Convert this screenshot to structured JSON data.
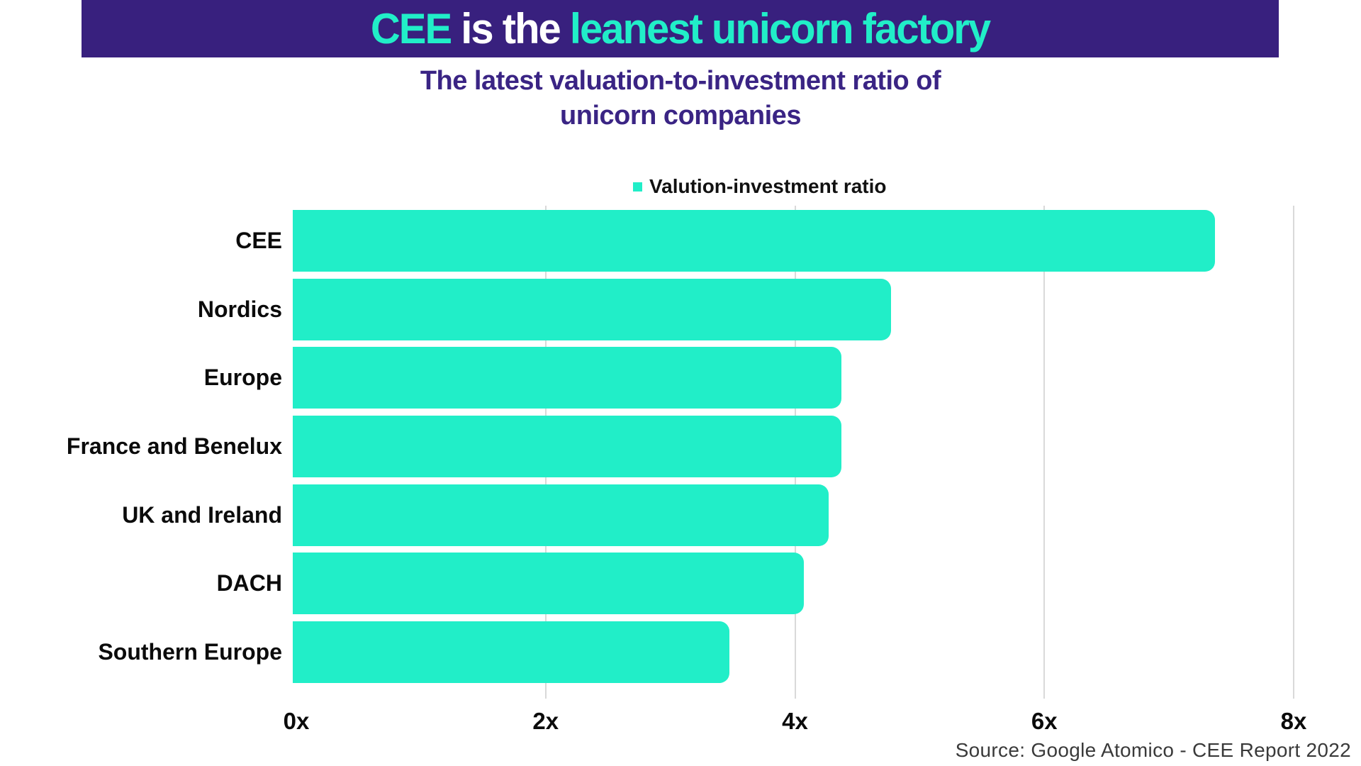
{
  "header": {
    "title_part1": "CEE",
    "title_part2": " is the ",
    "title_part3": "leanest unicorn factory",
    "banner_color": "#38207E",
    "accent_color": "#21EEC8",
    "secondary_text_color": "#FFFFFF"
  },
  "subtitle": {
    "line1": "The latest valuation-to-investment ratio of",
    "line2": "unicorn companies",
    "color": "#3A2484"
  },
  "legend": {
    "label": "Valution-investment ratio",
    "swatch_color": "#21EEC8"
  },
  "chart_data": {
    "type": "bar",
    "orientation": "horizontal",
    "title": "The latest valuation-to-investment ratio of unicorn companies",
    "categories": [
      "CEE",
      "Nordics",
      "Europe",
      "France and Benelux",
      "UK and Ireland",
      "DACH",
      "Southern Europe"
    ],
    "series": [
      {
        "name": "Valution-investment ratio",
        "values": [
          7.4,
          4.8,
          4.4,
          4.4,
          4.3,
          4.1,
          3.5
        ]
      }
    ],
    "value_suffix": "x",
    "xlim": [
      0,
      8
    ],
    "x_ticks": [
      {
        "value": 0,
        "label": "0x"
      },
      {
        "value": 2,
        "label": "2x"
      },
      {
        "value": 4,
        "label": "4x"
      },
      {
        "value": 6,
        "label": "6x"
      },
      {
        "value": 8,
        "label": "8x"
      }
    ],
    "bar_color": "#21EEC8",
    "gridline_color": "#D9D9D9",
    "grid": true,
    "legend_position": "top"
  },
  "footer": {
    "source": "Source: Google Atomico - CEE Report 2022"
  }
}
